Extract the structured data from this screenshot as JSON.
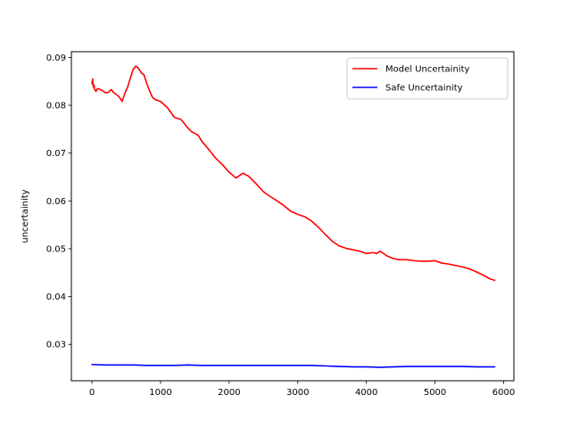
{
  "chart_data": {
    "type": "line",
    "title": "",
    "xlabel": "",
    "ylabel": "uncertainity",
    "xlim": [
      -300,
      6150
    ],
    "ylim": [
      0.0224,
      0.0912
    ],
    "xticks": [
      0,
      1000,
      2000,
      3000,
      4000,
      5000,
      6000
    ],
    "yticks": [
      0.03,
      0.04,
      0.05,
      0.06,
      0.07,
      0.08,
      0.09
    ],
    "xtick_labels": [
      "0",
      "1000",
      "2000",
      "3000",
      "4000",
      "5000",
      "6000"
    ],
    "ytick_labels": [
      "0.03",
      "0.04",
      "0.05",
      "0.06",
      "0.07",
      "0.08",
      "0.09"
    ],
    "grid": false,
    "legend_position": "upper right",
    "series": [
      {
        "name": "Model Uncertainity",
        "color": "#ff0000",
        "x": [
          0,
          10,
          20,
          30,
          40,
          60,
          80,
          120,
          160,
          200,
          240,
          280,
          320,
          360,
          400,
          440,
          480,
          520,
          560,
          600,
          640,
          680,
          720,
          760,
          800,
          840,
          880,
          920,
          1000,
          1100,
          1200,
          1300,
          1400,
          1450,
          1550,
          1600,
          1700,
          1800,
          1900,
          2000,
          2100,
          2200,
          2280,
          2400,
          2500,
          2600,
          2700,
          2800,
          2900,
          3000,
          3100,
          3200,
          3300,
          3400,
          3500,
          3600,
          3700,
          3800,
          3900,
          4000,
          4100,
          4150,
          4200,
          4300,
          4400,
          4500,
          4600,
          4700,
          4800,
          4900,
          5000,
          5100,
          5200,
          5300,
          5400,
          5500,
          5600,
          5700,
          5800,
          5870
        ],
        "y": [
          0.0845,
          0.0855,
          0.0838,
          0.0842,
          0.0833,
          0.0829,
          0.0835,
          0.0833,
          0.083,
          0.0826,
          0.0827,
          0.0833,
          0.0826,
          0.0822,
          0.0817,
          0.0808,
          0.0825,
          0.0838,
          0.0857,
          0.0875,
          0.0882,
          0.0877,
          0.0868,
          0.0863,
          0.0845,
          0.083,
          0.0817,
          0.0812,
          0.0808,
          0.0795,
          0.0775,
          0.077,
          0.0752,
          0.0745,
          0.0737,
          0.0725,
          0.0708,
          0.069,
          0.0676,
          0.066,
          0.0648,
          0.0658,
          0.0652,
          0.0635,
          0.0619,
          0.0609,
          0.06,
          0.059,
          0.0578,
          0.0572,
          0.0567,
          0.0558,
          0.0545,
          0.053,
          0.0516,
          0.0506,
          0.0501,
          0.0498,
          0.0495,
          0.049,
          0.0492,
          0.049,
          0.0495,
          0.0485,
          0.0479,
          0.0477,
          0.0477,
          0.0475,
          0.0474,
          0.0474,
          0.0475,
          0.047,
          0.0468,
          0.0465,
          0.0462,
          0.0458,
          0.0452,
          0.0445,
          0.0437,
          0.0434
        ]
      },
      {
        "name": "Safe Uncertainity",
        "color": "#0000ff",
        "x": [
          0,
          200,
          400,
          600,
          800,
          1000,
          1200,
          1400,
          1600,
          1800,
          2000,
          2200,
          2400,
          2600,
          2800,
          3000,
          3200,
          3400,
          3600,
          3800,
          4000,
          4200,
          4400,
          4600,
          4800,
          5000,
          5200,
          5400,
          5600,
          5870
        ],
        "y": [
          0.0258,
          0.0257,
          0.0257,
          0.0257,
          0.0256,
          0.0256,
          0.0256,
          0.0257,
          0.0256,
          0.0256,
          0.0256,
          0.0256,
          0.0256,
          0.0256,
          0.0256,
          0.0256,
          0.0256,
          0.0255,
          0.0254,
          0.0253,
          0.0253,
          0.0252,
          0.0253,
          0.0254,
          0.0254,
          0.0254,
          0.0254,
          0.0254,
          0.0253,
          0.0253
        ]
      }
    ]
  }
}
